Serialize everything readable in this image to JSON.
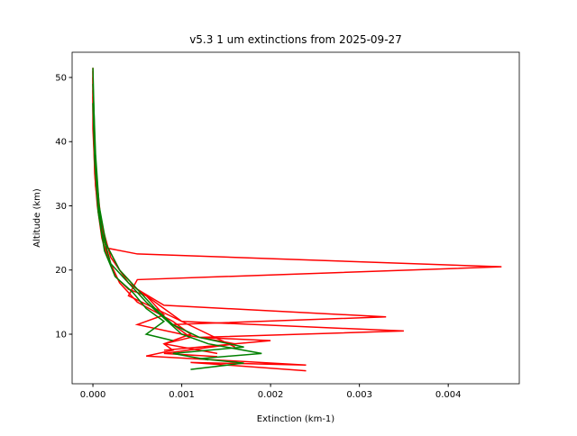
{
  "chart_data": {
    "type": "line",
    "title": "v5.3 1 um extinctions from 2025-09-27",
    "x_label": "Extinction (km-1)",
    "y_label": "Altitude (km)",
    "xlim": [
      -0.000234,
      0.0048
    ],
    "ylim": [
      2.28,
      53.93
    ],
    "xticks": [
      {
        "value": 0,
        "label": "0.000"
      },
      {
        "value": 0.001,
        "label": "0.001"
      },
      {
        "value": 0.002,
        "label": "0.002"
      },
      {
        "value": 0.003,
        "label": "0.003"
      },
      {
        "value": 0.004,
        "label": "0.004"
      }
    ],
    "yticks": [
      10,
      20,
      30,
      40,
      50
    ],
    "series": [
      {
        "color": "#ff0000",
        "x": [
          0.0,
          0.0,
          2e-05,
          5e-05,
          0.0001,
          0.00013,
          0.0005,
          0.0046,
          0.0005,
          0.0004,
          0.0007,
          0.001,
          0.0013,
          0.0016
        ],
        "values": [
          51.5,
          45,
          35,
          30,
          25,
          23.5,
          22.5,
          20.5,
          18.5,
          16,
          14,
          12,
          10,
          8
        ]
      },
      {
        "color": "#ff0000",
        "x": [
          0.0,
          0.0,
          3e-05,
          8e-05,
          0.00015,
          0.0003,
          0.0005,
          0.0008,
          0.0033,
          0.0009,
          0.0011,
          0.0008,
          0.0014
        ],
        "values": [
          51,
          42,
          33,
          28,
          24,
          20,
          17,
          14.5,
          12.7,
          11.5,
          9.5,
          8.5,
          7
        ]
      },
      {
        "color": "#ff0000",
        "x": [
          0.0,
          1e-05,
          4e-05,
          0.0001,
          0.0002,
          0.0004,
          0.0007,
          0.001,
          0.0035,
          0.0012,
          0.002,
          0.0012,
          0.0008
        ],
        "values": [
          50,
          40,
          32,
          27,
          22,
          18,
          15,
          12,
          10.5,
          9.5,
          9,
          8,
          7.5
        ]
      },
      {
        "color": "#ff0000",
        "x": [
          0.0,
          2e-05,
          6e-05,
          0.00012,
          0.0002,
          0.0003,
          0.0005,
          0.0009,
          0.0011,
          0.0008,
          0.0009,
          0.0006,
          0.0024,
          0.0011,
          0.0024
        ],
        "values": [
          48,
          38,
          30,
          25,
          21,
          18,
          15,
          12,
          10,
          8.5,
          7.5,
          6.6,
          5.2,
          5.6,
          4.3
        ]
      },
      {
        "color": "#ff0000",
        "x": [
          0.0,
          3e-05,
          8e-05,
          0.00012,
          0.00025,
          0.0004,
          0.0006,
          0.0008,
          0.0005,
          0.001,
          0.0016,
          0.0008,
          0.0014
        ],
        "values": [
          47,
          36,
          29,
          24,
          19,
          17,
          16,
          13,
          11.5,
          10,
          8.5,
          7,
          6.5
        ]
      },
      {
        "color": "#008000",
        "x": [
          0.0,
          2e-05,
          5e-05,
          0.0001,
          0.0002,
          0.0004,
          0.0006,
          0.0008,
          0.001,
          0.0013,
          0.0019,
          0.0012,
          0.0017,
          0.0011
        ],
        "values": [
          51.5,
          40,
          32,
          26,
          21,
          18,
          15,
          12.5,
          10,
          8.5,
          7,
          6.2,
          5.5,
          4.5
        ]
      },
      {
        "color": "#008000",
        "x": [
          0.0,
          3e-05,
          7e-05,
          0.00015,
          0.0003,
          0.0005,
          0.0007,
          0.0009,
          0.0012,
          0.0017,
          0.0009,
          0.0013
        ],
        "values": [
          49,
          38,
          30,
          24,
          20,
          17,
          14,
          11.5,
          9.5,
          8,
          7,
          6
        ]
      },
      {
        "color": "#008000",
        "x": [
          0.0,
          2e-05,
          6e-05,
          0.00013,
          0.00025,
          0.00045,
          0.0006,
          0.0008,
          0.0006,
          0.0009
        ],
        "values": [
          46,
          37,
          29,
          23,
          19,
          16.5,
          14,
          12,
          10,
          9
        ]
      }
    ]
  }
}
